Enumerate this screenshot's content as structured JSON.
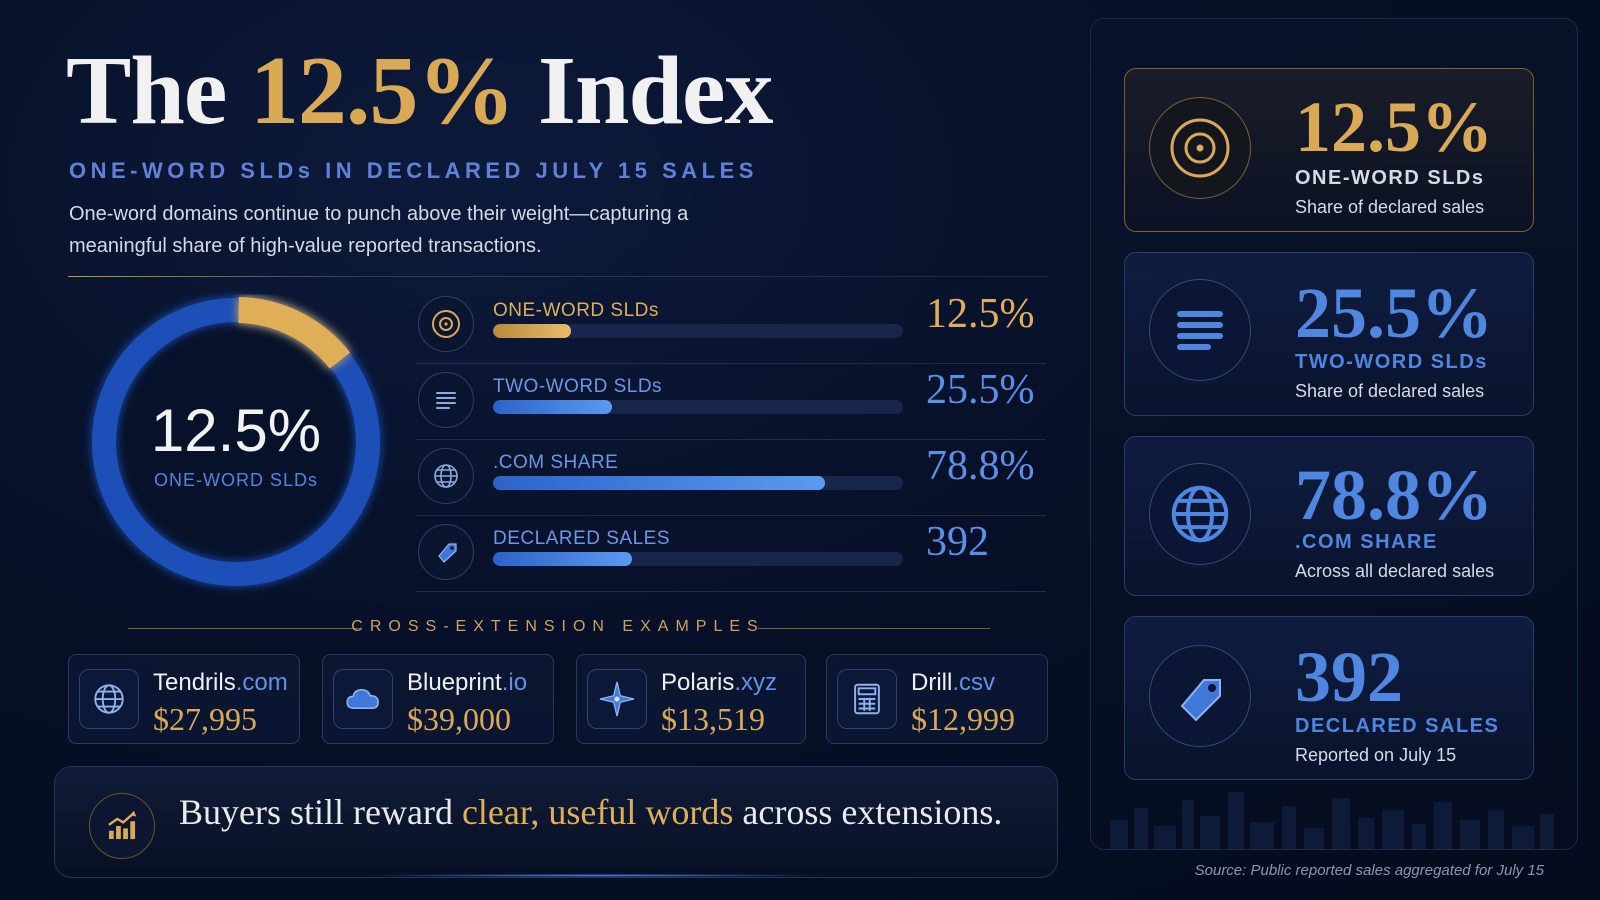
{
  "header": {
    "title_pre": "The",
    "title_highlight": "12.5%",
    "title_post": "Index",
    "subtitle": "ONE-WORD SLDs IN DECLARED JULY 15 SALES",
    "description": "One-word domains continue to punch above their weight—capturing a meaningful share of high-value reported transactions."
  },
  "donut": {
    "value_label": "12.5%",
    "name": "ONE-WORD SLDs",
    "fraction": 0.125
  },
  "metrics": [
    {
      "label": "ONE-WORD SLDs",
      "value": "12.5%",
      "fill": 0.19,
      "icon": "target-icon",
      "color": "#e0ae57"
    },
    {
      "label": "TWO-WORD SLDs",
      "value": "25.5%",
      "fill": 0.29,
      "icon": "list-icon",
      "color": "#4f86e0"
    },
    {
      "label": ".COM SHARE",
      "value": "78.8%",
      "fill": 0.81,
      "icon": "globe-icon",
      "color": "#4f86e0"
    },
    {
      "label": "DECLARED SALES",
      "value": "392",
      "fill": 0.34,
      "icon": "tag-icon",
      "color": "#4f86e0"
    }
  ],
  "cross_extension": {
    "heading": "CROSS-EXTENSION EXAMPLES",
    "examples": [
      {
        "name": "Tendrils",
        "tld": ".com",
        "price": "$27,995",
        "icon": "globe-icon"
      },
      {
        "name": "Blueprint",
        "tld": ".io",
        "price": "$39,000",
        "icon": "cloud-icon"
      },
      {
        "name": "Polaris",
        "tld": ".xyz",
        "price": "$13,519",
        "icon": "compass-star-icon"
      },
      {
        "name": "Drill",
        "tld": ".csv",
        "price": "$12,999",
        "icon": "calculator-icon"
      }
    ]
  },
  "banner": {
    "pre": "Buyers still reward",
    "highlight": "clear, useful words",
    "post": "across extensions.",
    "icon": "chart-up-icon"
  },
  "stat_cards": [
    {
      "value": "12.5%",
      "name": "ONE-WORD SLDs",
      "sub": "Share of declared sales",
      "icon": "target-icon"
    },
    {
      "value": "25.5%",
      "name": "TWO-WORD SLDs",
      "sub": "Share of declared sales",
      "icon": "list-icon"
    },
    {
      "value": "78.8%",
      "name": ".COM SHARE",
      "sub": "Across all declared sales",
      "icon": "globe-icon"
    },
    {
      "value": "392",
      "name": "DECLARED SALES",
      "sub": "Reported on July 15",
      "icon": "tag-icon"
    }
  ],
  "source": "Source: Public reported sales aggregated for July 15",
  "colors": {
    "gold": "#d9a955",
    "blue": "#4f86e0",
    "background": "#071028"
  },
  "chart_data": {
    "type": "bar",
    "categories": [
      "ONE-WORD SLDs",
      "TWO-WORD SLDs",
      ".COM SHARE",
      "DECLARED SALES"
    ],
    "values": [
      12.5,
      25.5,
      78.8,
      392
    ],
    "units": [
      "%",
      "%",
      "%",
      ""
    ],
    "title": "The 12.5% Index",
    "subtitle": "ONE-WORD SLDs IN DECLARED JULY 15 SALES"
  }
}
